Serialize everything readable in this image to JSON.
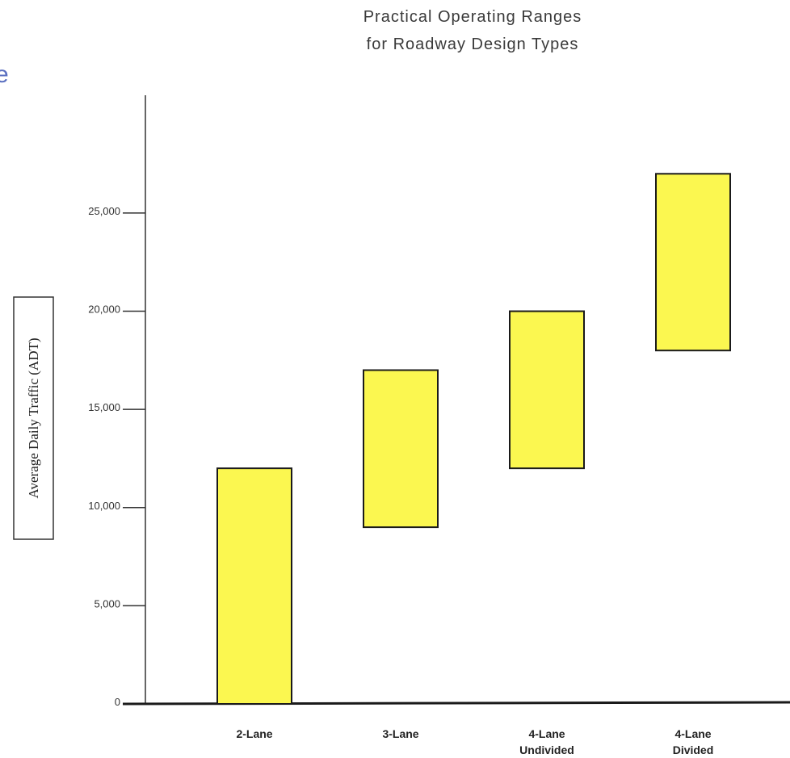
{
  "edge_glyph": "e",
  "chart_data": {
    "type": "bar",
    "subtype": "floating-range",
    "title_lines": [
      "Practical Operating Ranges",
      "for Roadway Design Types"
    ],
    "ylabel": "Average Daily Traffic (ADT)",
    "xlabel": "",
    "ylim": [
      0,
      31000
    ],
    "yticks": [
      0,
      5000,
      10000,
      15000,
      20000,
      25000
    ],
    "ytick_labels": [
      "0",
      "5,000",
      "10,000",
      "15,000",
      "20,000",
      "25,000"
    ],
    "categories": [
      [
        "2-Lane"
      ],
      [
        "3-Lane"
      ],
      [
        "4-Lane",
        "Undivided"
      ],
      [
        "4-Lane",
        "Divided"
      ]
    ],
    "ranges": [
      {
        "low": 0,
        "high": 12000
      },
      {
        "low": 9000,
        "high": 17000
      },
      {
        "low": 12000,
        "high": 20000
      },
      {
        "low": 18000,
        "high": 27000
      }
    ],
    "bar_color": "#fbf750",
    "bar_edge_color": "#1a1a1a",
    "grid": false,
    "legend": "none"
  }
}
